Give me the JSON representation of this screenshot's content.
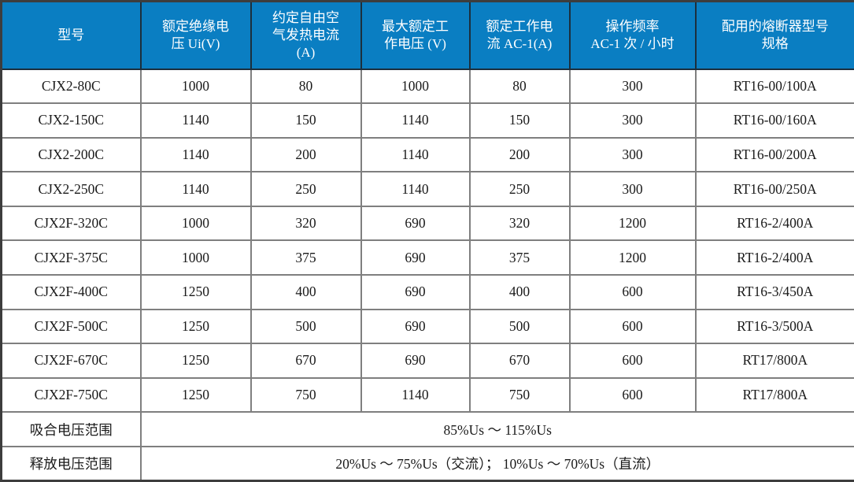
{
  "table": {
    "columns": [
      {
        "label": "型号"
      },
      {
        "label": "额定绝缘电\n压 Ui(V)"
      },
      {
        "label": "约定自由空\n气发热电流\n(A)"
      },
      {
        "label": "最大额定工\n作电压 (V)"
      },
      {
        "label": "额定工作电\n流 AC-1(A)"
      },
      {
        "label": "操作频率\nAC-1 次 / 小时"
      },
      {
        "label": "配用的熔断器型号\n规格"
      }
    ],
    "rows": [
      [
        "CJX2-80C",
        "1000",
        "80",
        "1000",
        "80",
        "300",
        "RT16-00/100A"
      ],
      [
        "CJX2-150C",
        "1140",
        "150",
        "1140",
        "150",
        "300",
        "RT16-00/160A"
      ],
      [
        "CJX2-200C",
        "1140",
        "200",
        "1140",
        "200",
        "300",
        "RT16-00/200A"
      ],
      [
        "CJX2-250C",
        "1140",
        "250",
        "1140",
        "250",
        "300",
        "RT16-00/250A"
      ],
      [
        "CJX2F-320C",
        "1000",
        "320",
        "690",
        "320",
        "1200",
        "RT16-2/400A"
      ],
      [
        "CJX2F-375C",
        "1000",
        "375",
        "690",
        "375",
        "1200",
        "RT16-2/400A"
      ],
      [
        "CJX2F-400C",
        "1250",
        "400",
        "690",
        "400",
        "600",
        "RT16-3/450A"
      ],
      [
        "CJX2F-500C",
        "1250",
        "500",
        "690",
        "500",
        "600",
        "RT16-3/500A"
      ],
      [
        "CJX2F-670C",
        "1250",
        "670",
        "690",
        "670",
        "600",
        "RT17/800A"
      ],
      [
        "CJX2F-750C",
        "1250",
        "750",
        "1140",
        "750",
        "600",
        "RT17/800A"
      ]
    ],
    "footer_rows": [
      {
        "label": "吸合电压范围",
        "value": "85%Us ～ 115%Us"
      },
      {
        "label": "释放电压范围",
        "value": "20%Us ～ 75%Us（交流）； 10%Us ～ 70%Us（直流）"
      }
    ],
    "colors": {
      "header_bg": "#0a7ec2",
      "header_text": "#ffffff",
      "body_text": "#1a1a1a",
      "grid": "#7f7f7f",
      "outer_border": "#3d3d3d"
    }
  }
}
